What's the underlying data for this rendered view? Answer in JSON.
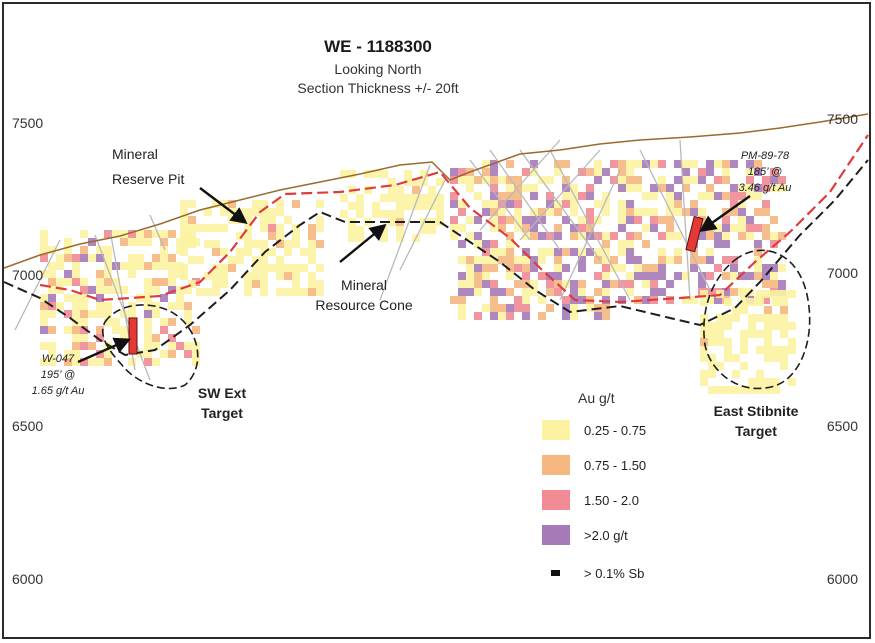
{
  "title": "WE - 1188300",
  "subtitle_lines": [
    "Looking North",
    "Section Thickness +/- 20ft"
  ],
  "y_axis": {
    "ticks": [
      "7500",
      "7000",
      "6500",
      "6000"
    ]
  },
  "callouts": {
    "reserve_pit": [
      "Mineral",
      "Reserve Pit"
    ],
    "resource_cone": [
      "Mineral",
      "Resource Cone"
    ]
  },
  "drill_holes": {
    "w047": [
      "W-047",
      "195’ @",
      "1.65 g/t Au"
    ],
    "pm8978": [
      "PM-89-78",
      "185’ @",
      "3.46 g/t Au"
    ]
  },
  "targets": {
    "sw_ext": [
      "SW Ext",
      "Target"
    ],
    "east_stibnite": [
      "East Stibnite",
      "Target"
    ]
  },
  "legend": {
    "title": "Au g/t",
    "items": [
      {
        "label": "0.25 - 0.75",
        "color": "#fbf3a1"
      },
      {
        "label": "0.75 - 1.50",
        "color": "#f5b77f"
      },
      {
        "label": "1.50 - 2.0",
        "color": "#f08a93"
      },
      {
        "label": ">2.0 g/t",
        "color": "#a67ab8"
      }
    ],
    "sb_label": "> 0.1% Sb"
  },
  "colors": {
    "topography": "#9a6a2e",
    "reserve_pit": "#e03c3c",
    "resource_cone": "#1e1e1e",
    "drill_hole": "#b9b9b9",
    "intercept": "#e53935"
  }
}
